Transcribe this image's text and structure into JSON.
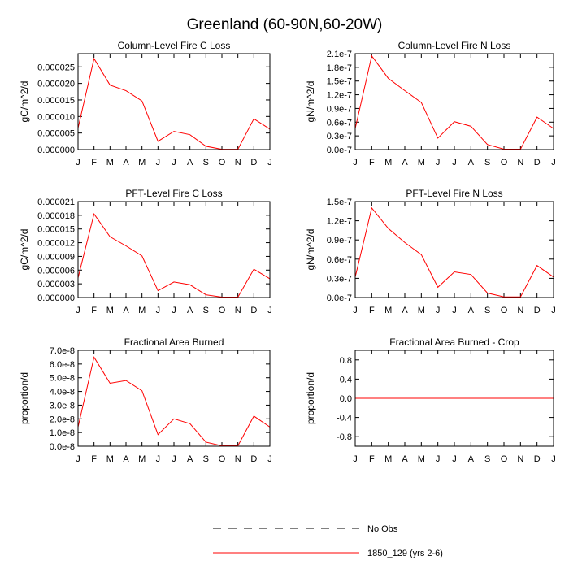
{
  "title": "Greenland (60-90N,60-20W)",
  "colors": {
    "model": "#ff0000",
    "obs": "#000000",
    "frame": "#000000"
  },
  "legend": [
    {
      "label": "No Obs",
      "style": "dashed",
      "color": "#000000"
    },
    {
      "label": "1850_129 (yrs 2-6)",
      "style": "solid",
      "color": "#ff0000"
    }
  ],
  "chart_data": [
    {
      "type": "line",
      "title": "Column-Level Fire C Loss",
      "xlabel": "",
      "ylabel": "gC/m^2/d",
      "categories": [
        "J",
        "F",
        "M",
        "A",
        "M",
        "J",
        "J",
        "A",
        "S",
        "O",
        "N",
        "D",
        "J"
      ],
      "ylim": [
        0,
        2.9e-05
      ],
      "yticks": [
        0,
        5e-06,
        1e-05,
        1.5e-05,
        2e-05,
        2.5e-05
      ],
      "ytick_labels": [
        "0.000000",
        "0.000005",
        "0.000010",
        "0.000015",
        "0.000020",
        "0.000025"
      ],
      "series": [
        {
          "name": "1850_129 (yrs 2-6)",
          "values": [
            6.5e-06,
            2.75e-05,
            1.95e-05,
            1.78e-05,
            1.47e-05,
            2.5e-06,
            5.5e-06,
            4.5e-06,
            1e-06,
            1e-07,
            1e-07,
            9.3e-06,
            6.2e-06
          ]
        }
      ]
    },
    {
      "type": "line",
      "title": "Column-Level Fire N Loss",
      "xlabel": "",
      "ylabel": "gN/m^2/d",
      "categories": [
        "J",
        "F",
        "M",
        "A",
        "M",
        "J",
        "J",
        "A",
        "S",
        "O",
        "N",
        "D",
        "J"
      ],
      "ylim": [
        0,
        2.1e-07
      ],
      "yticks": [
        0,
        3e-08,
        6e-08,
        9e-08,
        1.2e-07,
        1.5e-07,
        1.8e-07,
        2.1e-07
      ],
      "ytick_labels": [
        "0.0e-7",
        "0.3e-7",
        "0.6e-7",
        "0.9e-7",
        "1.2e-7",
        "1.5e-7",
        "1.8e-7",
        "2.1e-7"
      ],
      "series": [
        {
          "name": "1850_129 (yrs 2-6)",
          "values": [
            4.6e-08,
            2.05e-07,
            1.56e-07,
            1.29e-07,
            1.03e-07,
            2.5e-08,
            6.1e-08,
            5.1e-08,
            1.1e-08,
            1e-09,
            1e-09,
            7.1e-08,
            4.6e-08
          ]
        }
      ]
    },
    {
      "type": "line",
      "title": "PFT-Level Fire C Loss",
      "xlabel": "",
      "ylabel": "gC/m^2/d",
      "categories": [
        "J",
        "F",
        "M",
        "A",
        "M",
        "J",
        "J",
        "A",
        "S",
        "O",
        "N",
        "D",
        "J"
      ],
      "ylim": [
        0,
        2.1e-05
      ],
      "yticks": [
        0,
        3e-06,
        6e-06,
        9e-06,
        1.2e-05,
        1.5e-05,
        1.8e-05,
        2.1e-05
      ],
      "ytick_labels": [
        "0.000000",
        "0.000003",
        "0.000006",
        "0.000009",
        "0.000012",
        "0.000015",
        "0.000018",
        "0.000021"
      ],
      "series": [
        {
          "name": "1850_129 (yrs 2-6)",
          "values": [
            4.3e-06,
            1.83e-05,
            1.33e-05,
            1.13e-05,
            9.1e-06,
            1.5e-06,
            3.4e-06,
            2.8e-06,
            6e-07,
            1e-07,
            1e-07,
            6.2e-06,
            4.1e-06
          ]
        }
      ]
    },
    {
      "type": "line",
      "title": "PFT-Level Fire N Loss",
      "xlabel": "",
      "ylabel": "gN/m^2/d",
      "categories": [
        "J",
        "F",
        "M",
        "A",
        "M",
        "J",
        "J",
        "A",
        "S",
        "O",
        "N",
        "D",
        "J"
      ],
      "ylim": [
        0,
        1.5e-07
      ],
      "yticks": [
        0,
        3e-08,
        6e-08,
        9e-08,
        1.2e-07,
        1.5e-07
      ],
      "ytick_labels": [
        "0.0e-7",
        "0.3e-7",
        "0.6e-7",
        "0.9e-7",
        "1.2e-7",
        "1.5e-7"
      ],
      "series": [
        {
          "name": "1850_129 (yrs 2-6)",
          "values": [
            3.2e-08,
            1.4e-07,
            1.08e-07,
            8.6e-08,
            6.7e-08,
            1.6e-08,
            4e-08,
            3.6e-08,
            7e-09,
            1e-09,
            1e-09,
            5e-08,
            3.2e-08
          ]
        }
      ]
    },
    {
      "type": "line",
      "title": "Fractional Area Burned",
      "xlabel": "",
      "ylabel": "proportion/d",
      "categories": [
        "J",
        "F",
        "M",
        "A",
        "M",
        "J",
        "J",
        "A",
        "S",
        "O",
        "N",
        "D",
        "J"
      ],
      "ylim": [
        0,
        7e-08
      ],
      "yticks": [
        0,
        1e-08,
        2e-08,
        3e-08,
        4e-08,
        5e-08,
        6e-08,
        7e-08
      ],
      "ytick_labels": [
        "0.0e-8",
        "1.0e-8",
        "2.0e-8",
        "3.0e-8",
        "4.0e-8",
        "5.0e-8",
        "6.0e-8",
        "7.0e-8"
      ],
      "series": [
        {
          "name": "1850_129 (yrs 2-6)",
          "values": [
            1.4e-08,
            6.5e-08,
            4.6e-08,
            4.8e-08,
            4.05e-08,
            8.5e-09,
            2e-08,
            1.65e-08,
            3e-09,
            3e-10,
            3e-10,
            2.2e-08,
            1.4e-08
          ]
        }
      ]
    },
    {
      "type": "line",
      "title": "Fractional Area Burned - Crop",
      "xlabel": "",
      "ylabel": "proportion/d",
      "categories": [
        "J",
        "F",
        "M",
        "A",
        "M",
        "J",
        "J",
        "A",
        "S",
        "O",
        "N",
        "D",
        "J"
      ],
      "ylim": [
        -1,
        1
      ],
      "yticks": [
        -0.8,
        -0.4,
        0,
        0.4,
        0.8
      ],
      "ytick_labels": [
        "-0.8",
        "-0.4",
        "0.0",
        "0.4",
        "0.8"
      ],
      "series": [
        {
          "name": "1850_129 (yrs 2-6)",
          "values": [
            0,
            0,
            0,
            0,
            0,
            0,
            0,
            0,
            0,
            0,
            0,
            0,
            0
          ]
        }
      ]
    }
  ]
}
